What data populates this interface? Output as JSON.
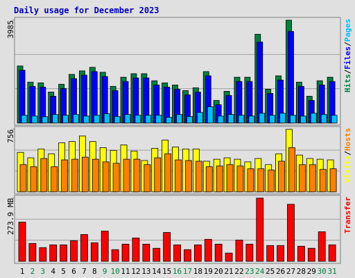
{
  "chart_data": [
    {
      "type": "bar",
      "title": "Daily usage for December 2023",
      "ylim": [
        0,
        3985
      ],
      "yticks": [
        3985
      ],
      "legend_separator": "/",
      "series": [
        {
          "name": "Hits",
          "color": "#008040",
          "values": [
            2211,
            1583,
            1556,
            1201,
            1501,
            1884,
            2020,
            2157,
            1966,
            1420,
            1774,
            1911,
            1911,
            1638,
            1556,
            1474,
            1256,
            1365,
            1993,
            874,
            1229,
            1774,
            1774,
            3439,
            1310,
            1829,
            3985,
            1583,
            1037,
            1638,
            1774
          ]
        },
        {
          "name": "Files",
          "color": "#0000ff",
          "values": [
            2047,
            1420,
            1392,
            1037,
            1338,
            1720,
            1856,
            1993,
            1802,
            1256,
            1610,
            1747,
            1747,
            1474,
            1392,
            1310,
            1092,
            1201,
            1829,
            710,
            1065,
            1610,
            1610,
            3140,
            1147,
            1665,
            3549,
            1420,
            874,
            1474,
            1610
          ]
        },
        {
          "name": "Pages",
          "color": "#00c0ff",
          "values": [
            300,
            270,
            246,
            328,
            300,
            330,
            270,
            300,
            360,
            250,
            330,
            300,
            300,
            300,
            220,
            330,
            250,
            410,
            628,
            270,
            330,
            300,
            270,
            380,
            300,
            380,
            300,
            270,
            380,
            330,
            300
          ]
        }
      ]
    },
    {
      "type": "bar",
      "ylim": [
        0,
        756
      ],
      "yticks": [
        756
      ],
      "legend_separator": "/",
      "series": [
        {
          "name": "Visits",
          "color": "#ffff00",
          "values": [
            477,
            411,
            518,
            460,
            592,
            608,
            674,
            608,
            534,
            501,
            567,
            493,
            378,
            526,
            625,
            542,
            518,
            518,
            370,
            394,
            411,
            394,
            362,
            403,
            329,
            460,
            756,
            444,
            403,
            394,
            386
          ]
        },
        {
          "name": "Hosts",
          "color": "#ff8000",
          "values": [
            329,
            304,
            403,
            304,
            386,
            394,
            419,
            394,
            362,
            345,
            394,
            394,
            329,
            411,
            460,
            386,
            378,
            370,
            304,
            312,
            329,
            312,
            279,
            279,
            263,
            370,
            534,
            329,
            329,
            271,
            279
          ]
        }
      ]
    },
    {
      "type": "bar",
      "ylim": [
        0,
        273.9
      ],
      "yticks": [
        {
          "value": 273.9,
          "label": "273.9 MB"
        }
      ],
      "series": [
        {
          "name": "Transfer",
          "color": "#ff0000",
          "values": [
            169.7,
            77.4,
            59.5,
            71.4,
            71.4,
            89.3,
            116.1,
            80.4,
            131.0,
            50.6,
            74.4,
            101.2,
            74.4,
            56.6,
            125.0,
            71.4,
            50.6,
            71.4,
            95.3,
            74.4,
            35.7,
            92.3,
            74.4,
            273.9,
            68.5,
            68.5,
            247.1,
            65.5,
            56.6,
            128.0,
            71.4
          ]
        }
      ],
      "categories": [
        "1",
        "2",
        "3",
        "4",
        "5",
        "6",
        "7",
        "8",
        "9",
        "10",
        "11",
        "12",
        "13",
        "14",
        "15",
        "16",
        "17",
        "18",
        "19",
        "20",
        "21",
        "22",
        "23",
        "24",
        "25",
        "26",
        "27",
        "28",
        "29",
        "30",
        "31"
      ],
      "category_colors": [
        "#000000",
        "#008040",
        "#008040",
        "#000000",
        "#000000",
        "#000000",
        "#000000",
        "#000000",
        "#008040",
        "#008040",
        "#000000",
        "#000000",
        "#000000",
        "#000000",
        "#000000",
        "#008040",
        "#008040",
        "#000000",
        "#000000",
        "#000000",
        "#000000",
        "#000000",
        "#008040",
        "#008040",
        "#000000",
        "#000000",
        "#000000",
        "#000000",
        "#000000",
        "#008040",
        "#008040"
      ]
    }
  ]
}
